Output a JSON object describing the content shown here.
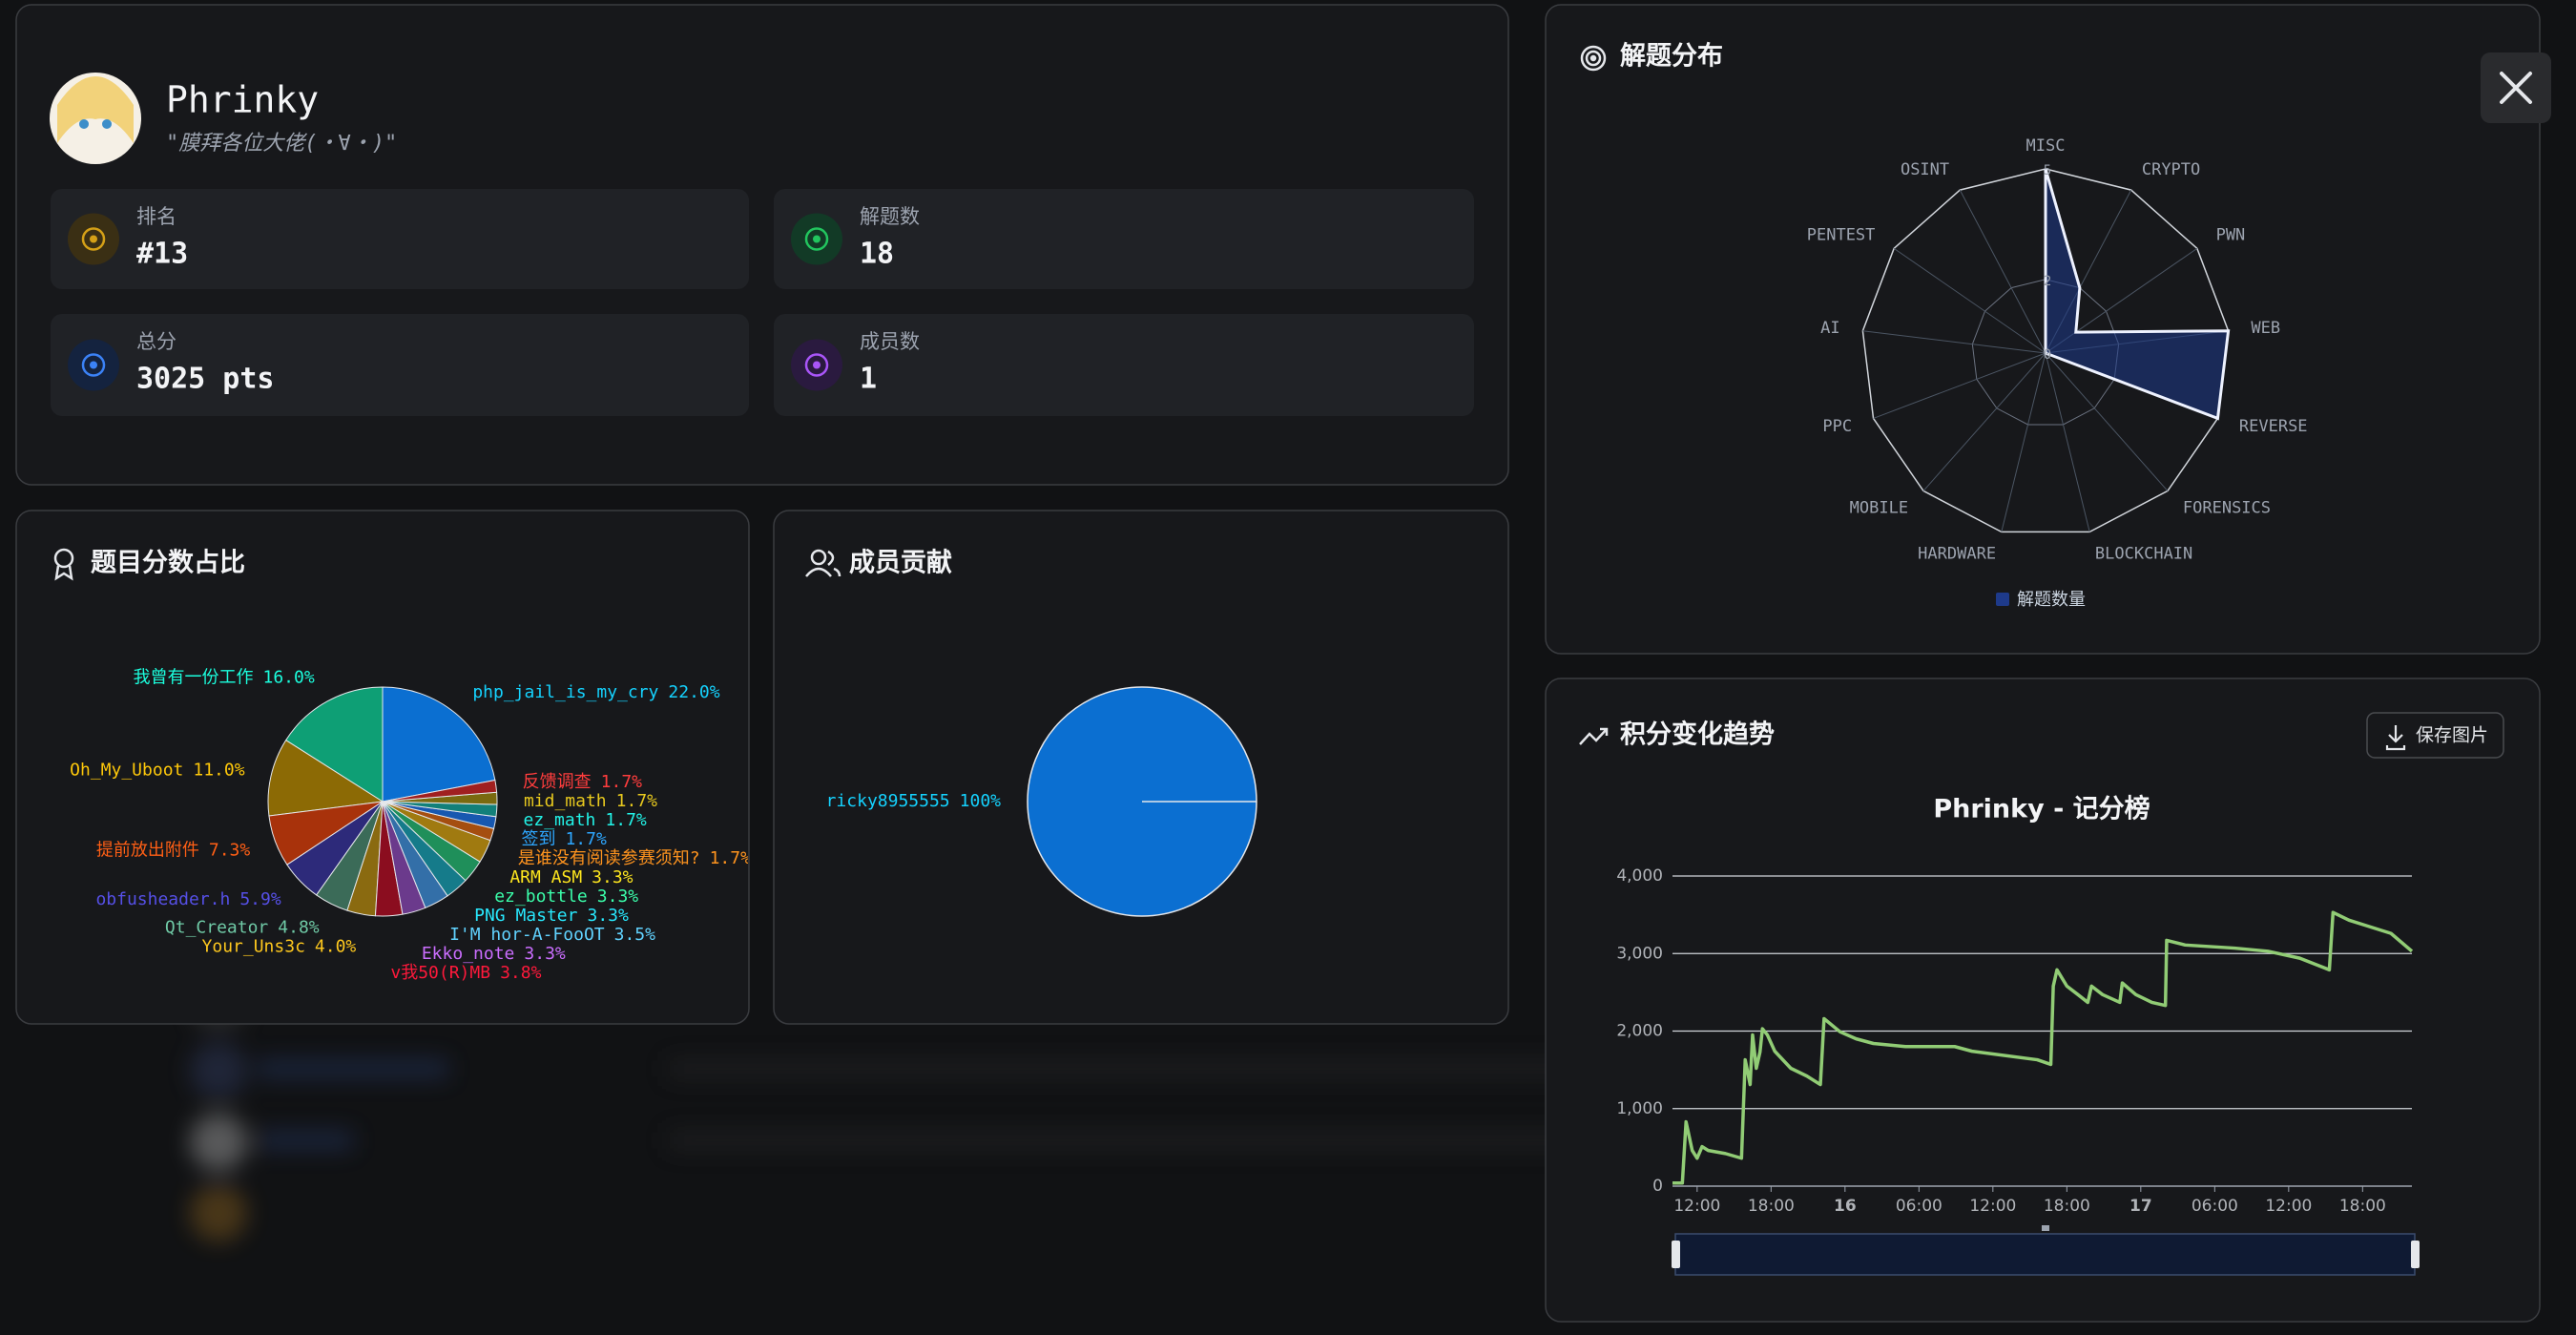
{
  "profile": {
    "name": "Phrinky",
    "motto": "\"膜拜各位大佬(・∀・)\"",
    "stats": [
      {
        "label": "排名",
        "value": "#13"
      },
      {
        "label": "解题数",
        "value": "18"
      },
      {
        "label": "总分",
        "value": "3025 pts"
      },
      {
        "label": "成员数",
        "value": "1"
      }
    ]
  },
  "panels": {
    "score_share": "题目分数占比",
    "member_contribution": "成员贡献",
    "solve_distribution": "解题分布",
    "score_trend": "积分变化趋势",
    "save_button": "保存图片"
  },
  "chart_data": [
    {
      "type": "pie",
      "categories": [
        "php_jail_is_my_cry",
        "我曾有一份工作",
        "Oh_My_Uboot",
        "提前放出附件",
        "obfusheader.h",
        "Qt_Creator",
        "Your_Uns3c",
        "v我50(R)MB",
        "Ekko_note",
        "I'M hor-A-FooOT",
        "PNG Master",
        "ez_bottle",
        "ARM ASM",
        "是谁没有阅读参赛须知?",
        "签到",
        "ez_math",
        "mid_math",
        "反馈调查"
      ],
      "values": [
        22.0,
        16.0,
        11.0,
        7.3,
        5.9,
        4.8,
        4.0,
        3.8,
        3.3,
        3.5,
        3.3,
        3.3,
        3.3,
        1.7,
        1.7,
        1.7,
        1.7,
        1.7
      ],
      "value_labels": [
        "22.0%",
        "16.0%",
        "11.0%",
        "7.3%",
        "5.9%",
        "4.8%",
        "4.0%",
        "3.8%",
        "3.3%",
        "3.5%",
        "3.3%",
        "3.3%",
        "3.3%",
        "1.7%",
        "1.7%",
        "1.7%",
        "1.7%",
        "1.7%"
      ],
      "colors": [
        "#0b6fd1",
        "#0e9f75",
        "#8c6a05",
        "#a8320b",
        "#2d2a7a",
        "#3b6b58",
        "#8a6a10",
        "#8b0d1f",
        "#6b3a8c",
        "#336fa8",
        "#157b8a",
        "#1f8f5a",
        "#a07a10",
        "#a54e10",
        "#1858b0",
        "#12807a",
        "#7a6a10",
        "#a02020"
      ]
    },
    {
      "type": "pie",
      "categories": [
        "ricky8955555"
      ],
      "values": [
        100
      ],
      "value_labels": [
        "100%"
      ],
      "colors": [
        "#0b6fd1"
      ]
    },
    {
      "type": "radar",
      "indicators": [
        "MISC",
        "CRYPTO",
        "PWN",
        "WEB",
        "REVERSE",
        "FORENSICS",
        "BLOCKCHAIN",
        "HARDWARE",
        "MOBILE",
        "PPC",
        "AI",
        "PENTEST",
        "OSINT"
      ],
      "rlim": [
        0,
        5
      ],
      "rticks": [
        0,
        2,
        5
      ],
      "series": [
        {
          "name": "解题数量",
          "color": "#1e3a8a",
          "values": [
            5,
            2,
            1,
            5,
            5,
            0,
            0,
            0,
            0,
            0,
            0,
            0,
            0
          ]
        }
      ]
    },
    {
      "type": "line",
      "title": "Phrinky - 记分榜",
      "x": [
        10,
        10.8,
        11.1,
        11.6,
        12,
        12.4,
        12.9,
        14.3,
        15.6,
        15.9,
        16.3,
        16.5,
        16.8,
        17.1,
        17.3,
        17.7,
        18.3,
        19.6,
        20.9,
        22,
        22.3,
        23.6,
        24.9,
        26.3,
        28.9,
        32.9,
        34.3,
        39.6,
        40.7,
        40.9,
        41.2,
        42,
        42.9,
        43.7,
        44,
        44.9,
        46.3,
        46.5,
        47.6,
        48.9,
        50,
        50.1,
        51.6,
        55.6,
        58.3,
        60.9,
        63.3,
        63.6,
        64.9,
        66.3,
        68.3,
        70
      ],
      "series": [
        {
          "color": "#91cc75",
          "values": [
            40,
            40,
            830,
            460,
            360,
            510,
            460,
            420,
            360,
            1630,
            1310,
            1950,
            1520,
            1730,
            2030,
            1950,
            1740,
            1520,
            1420,
            1310,
            2160,
            1990,
            1900,
            1840,
            1800,
            1800,
            1740,
            1630,
            1570,
            2580,
            2790,
            2580,
            2470,
            2370,
            2580,
            2470,
            2370,
            2620,
            2470,
            2370,
            2330,
            3170,
            3110,
            3070,
            3030,
            2940,
            2790,
            3530,
            3430,
            3360,
            3260,
            3030
          ]
        }
      ],
      "xlim": [
        10,
        70
      ],
      "xticks": [
        {
          "value": 12,
          "label": "12:00"
        },
        {
          "value": 18,
          "label": "18:00"
        },
        {
          "value": 24,
          "label": "16"
        },
        {
          "value": 30,
          "label": "06:00"
        },
        {
          "value": 36,
          "label": "12:00"
        },
        {
          "value": 42,
          "label": "18:00"
        },
        {
          "value": 48,
          "label": "17"
        },
        {
          "value": 54,
          "label": "06:00"
        },
        {
          "value": 60,
          "label": "12:00"
        },
        {
          "value": 66,
          "label": "18:00"
        }
      ],
      "ylim": [
        0,
        4000
      ],
      "yticks": [
        0,
        {
          "value": 1000,
          "label": "1,000"
        },
        {
          "value": 2000,
          "label": "2,000"
        },
        {
          "value": 3000,
          "label": "3,000"
        },
        {
          "value": 4000,
          "label": "4,000"
        }
      ],
      "grid": true
    }
  ]
}
